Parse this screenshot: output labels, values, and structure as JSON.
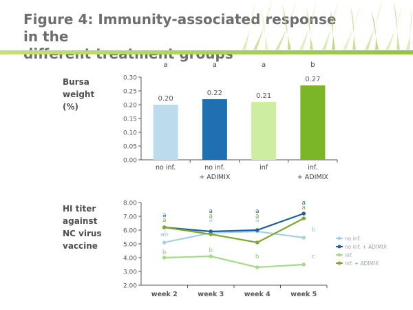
{
  "slide_title": "Figure 4: Immunity-associated response in the\ndifferent treatment groups",
  "colors": {
    "title_text": "#6e6e6e",
    "title_rule": "#8ec63f",
    "no_inf": "#bcdcee",
    "no_inf_adimix": "#1f6fb3",
    "inf": "#cdeea0",
    "inf_adimix": "#7ab628",
    "line_no_inf": "#a9cfe6",
    "line_no_inf_adimix": "#1c5f9e",
    "line_inf": "#a6d98a",
    "line_inf_adimix": "#7fa82e"
  },
  "chart_data": [
    {
      "type": "bar",
      "ylabel": "Bursa\nweight\n(%)",
      "categories": [
        "no inf.",
        "no inf.\n+ ADIMIX",
        "inf",
        "inf.\n+ ADIMIX"
      ],
      "values": [
        0.2,
        0.22,
        0.21,
        0.27
      ],
      "value_labels": [
        "0.20",
        "0.22",
        "0.21",
        "0.27"
      ],
      "significance": [
        "a",
        "a",
        "a",
        "b"
      ],
      "ylim": [
        0,
        0.3
      ],
      "yticks": [
        "0.00",
        "0.05",
        "0.10",
        "0.15",
        "0.20",
        "0.25",
        "0.30"
      ],
      "grid": false
    },
    {
      "type": "line",
      "ylabel": "HI titer\nagainst\nNC virus\nvaccine",
      "x": [
        "week 2",
        "week 3",
        "week 4",
        "week 5"
      ],
      "ylim": [
        2.0,
        8.0
      ],
      "yticks": [
        "2.00",
        "3.00",
        "4.00",
        "5.00",
        "6.00",
        "7.00",
        "8.00"
      ],
      "legend_position": "right",
      "grid": false,
      "series": [
        {
          "name": "no inf.",
          "values": [
            5.1,
            5.8,
            5.9,
            5.45
          ],
          "letters": [
            "ab",
            "a",
            "a",
            "b"
          ]
        },
        {
          "name": "no inf.  + ADIMIX",
          "values": [
            6.2,
            5.9,
            6.0,
            7.2
          ],
          "letters": [
            "a",
            "a",
            "a",
            "a"
          ]
        },
        {
          "name": "inf.",
          "values": [
            4.0,
            4.1,
            3.3,
            3.5
          ],
          "letters": [
            "b",
            "b",
            "b",
            "c"
          ]
        },
        {
          "name": "inf.  + ADIMIX",
          "values": [
            6.2,
            5.7,
            5.1,
            6.85
          ],
          "letters": [
            "a",
            "a",
            "a",
            "a"
          ]
        }
      ]
    }
  ]
}
